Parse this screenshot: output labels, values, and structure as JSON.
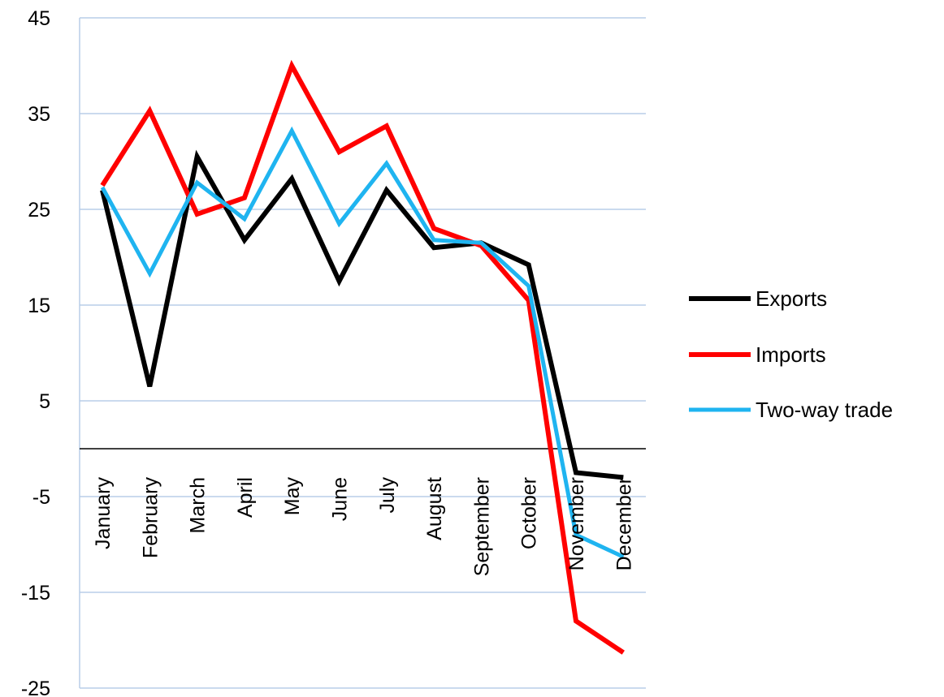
{
  "chart_data": {
    "type": "line",
    "title": "",
    "xlabel": "",
    "ylabel": "",
    "categories": [
      "January",
      "February",
      "March",
      "April",
      "May",
      "June",
      "July",
      "August",
      "September",
      "October",
      "November",
      "December"
    ],
    "ylim": [
      -25,
      45
    ],
    "yticks": [
      45,
      35,
      25,
      15,
      5,
      -5,
      -15,
      -25
    ],
    "grid": true,
    "legend_position": "right",
    "series": [
      {
        "name": "Exports",
        "color": "#000000",
        "values": [
          27.0,
          6.5,
          30.5,
          21.8,
          28.2,
          17.5,
          27.0,
          21.0,
          21.5,
          19.2,
          -2.5,
          -3.0
        ]
      },
      {
        "name": "Imports",
        "color": "#ff0000",
        "values": [
          27.5,
          35.3,
          24.5,
          26.2,
          40.0,
          31.0,
          33.7,
          23.0,
          21.2,
          15.5,
          -18.0,
          -21.3
        ]
      },
      {
        "name": "Two-way trade",
        "color": "#1fb4f0",
        "values": [
          27.3,
          18.3,
          27.8,
          24.0,
          33.2,
          23.5,
          29.8,
          21.8,
          21.5,
          17.0,
          -9.0,
          -11.3
        ]
      }
    ]
  },
  "colors": {
    "gridline": "#b8cde8",
    "axis": "#000000"
  }
}
